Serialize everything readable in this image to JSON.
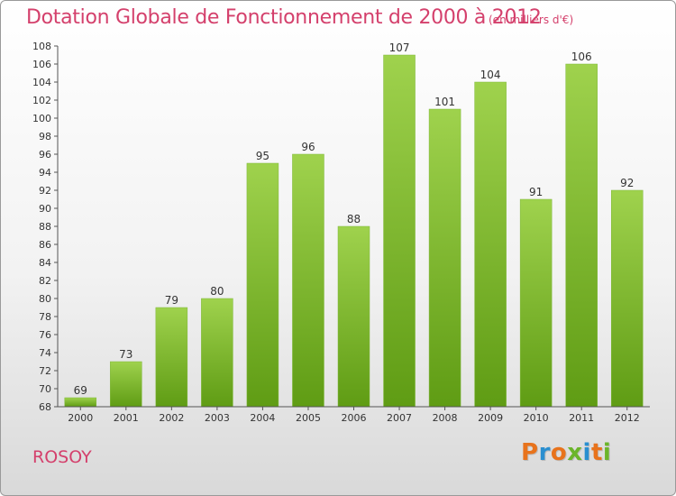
{
  "header": {
    "title": "Dotation Globale de Fonctionnement de 2000 à 2012",
    "subtitle": "(en milliers d'€)"
  },
  "footer": {
    "commune": "ROSOY",
    "logo_text": "Proxiti"
  },
  "colors": {
    "title": "#d4406c",
    "bar_light": "#9fd24d",
    "bar_dark": "#5f9c14",
    "logo_letters": [
      "#e8731c",
      "#2a8fd0",
      "#e8731c",
      "#6bb52a",
      "#2a8fd0",
      "#e8731c",
      "#6bb52a"
    ]
  },
  "chart_data": {
    "type": "bar",
    "categories": [
      "2000",
      "2001",
      "2002",
      "2003",
      "2004",
      "2005",
      "2006",
      "2007",
      "2008",
      "2009",
      "2010",
      "2011",
      "2012"
    ],
    "values": [
      69,
      73,
      79,
      80,
      95,
      96,
      88,
      107,
      101,
      104,
      91,
      106,
      92
    ],
    "ylim": [
      68,
      108
    ],
    "yticks": [
      68,
      70,
      72,
      74,
      76,
      78,
      80,
      82,
      84,
      86,
      88,
      90,
      92,
      94,
      96,
      98,
      100,
      102,
      104,
      106,
      108
    ],
    "grid": false,
    "data_labels": true
  }
}
